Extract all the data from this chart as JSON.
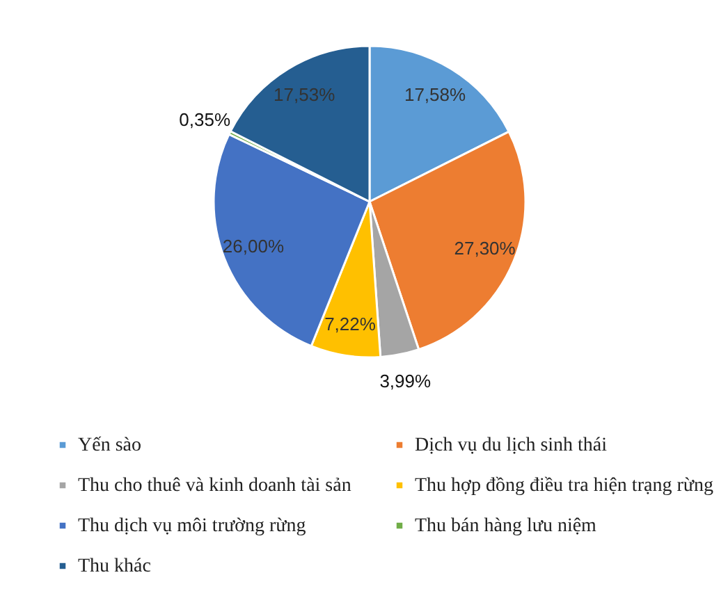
{
  "chart_data": {
    "type": "pie",
    "categories": [
      "Yến sào",
      "Dịch vụ du lịch sinh thái",
      "Thu cho thuê và kinh doanh tài sản",
      "Thu hợp đồng điều tra hiện trạng rừng",
      "Thu dịch vụ môi trường rừng",
      "Thu bán hàng lưu niệm",
      "Thu khác"
    ],
    "values": [
      17.58,
      27.3,
      3.99,
      7.22,
      26.0,
      0.35,
      17.53
    ],
    "colors": [
      "#5b9bd5",
      "#ed7d31",
      "#a5a5a5",
      "#ffc000",
      "#4472c4",
      "#70ad47",
      "#255e91"
    ],
    "value_labels": [
      "17,58%",
      "27,30%",
      "3,99%",
      "7,22%",
      "26,00%",
      "0,35%",
      "17,53%"
    ],
    "legend": "bottom"
  }
}
